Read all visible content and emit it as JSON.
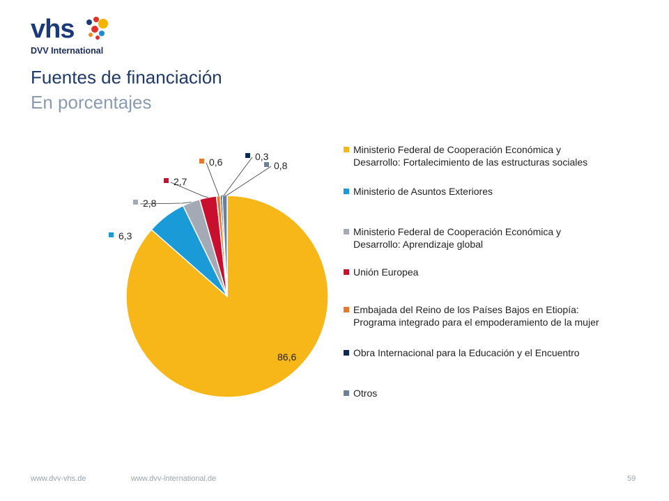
{
  "brand": {
    "logo_text": "vhs",
    "logo_subtext": "DVV International"
  },
  "header": {
    "title": "Fuentes de financiación",
    "subtitle": "En porcentajes"
  },
  "footer": {
    "link1": "www.dvv-vhs.de",
    "link2": "www.dvv-international.de",
    "page_number": "59"
  },
  "chart_data": {
    "type": "pie",
    "title": "",
    "slices": [
      {
        "name": "Ministerio Federal de Cooperación Económica y Desarrollo: Fortalecimiento de las estructuras sociales",
        "value": 86.6,
        "label": "86,6",
        "color": "#f7b718"
      },
      {
        "name": "Ministerio de Asuntos Exteriores",
        "value": 6.3,
        "label": "6,3",
        "color": "#1a9ad6"
      },
      {
        "name": "Ministerio Federal de Cooperación Económica y Desarrollo: Aprendizaje global",
        "value": 2.8,
        "label": "2,8",
        "color": "#a3aab5"
      },
      {
        "name": "Unión Europea",
        "value": 2.7,
        "label": "2,7",
        "color": "#c8102e"
      },
      {
        "name": "Embajada del Reino de los Países Bajos en Etiopía: Programa integrado para el empoderamiento de la mujer",
        "value": 0.6,
        "label": "0,6",
        "color": "#e8772e"
      },
      {
        "name": "Obra Internacional para la Educación y el Encuentro",
        "value": 0.3,
        "label": "0,3",
        "color": "#0d2a52"
      },
      {
        "name": "Otros",
        "value": 0.8,
        "label": "0,8",
        "color": "#6b7f95"
      }
    ],
    "legend_position": "right",
    "legend": [
      "Ministerio Federal de Cooperación Económica y\nDesarrollo: Fortalecimiento de las estructuras sociales",
      "Ministerio de Asuntos Exteriores",
      "Ministerio Federal de Cooperación Económica y\nDesarrollo: Aprendizaje global",
      "Unión Europea",
      "Embajada del Reino de los Países Bajos en Etiopía:\nPrograma integrado para el empoderamiento de la mujer",
      "Obra Internacional para la Educación y el Encuentro",
      "Otros"
    ]
  }
}
